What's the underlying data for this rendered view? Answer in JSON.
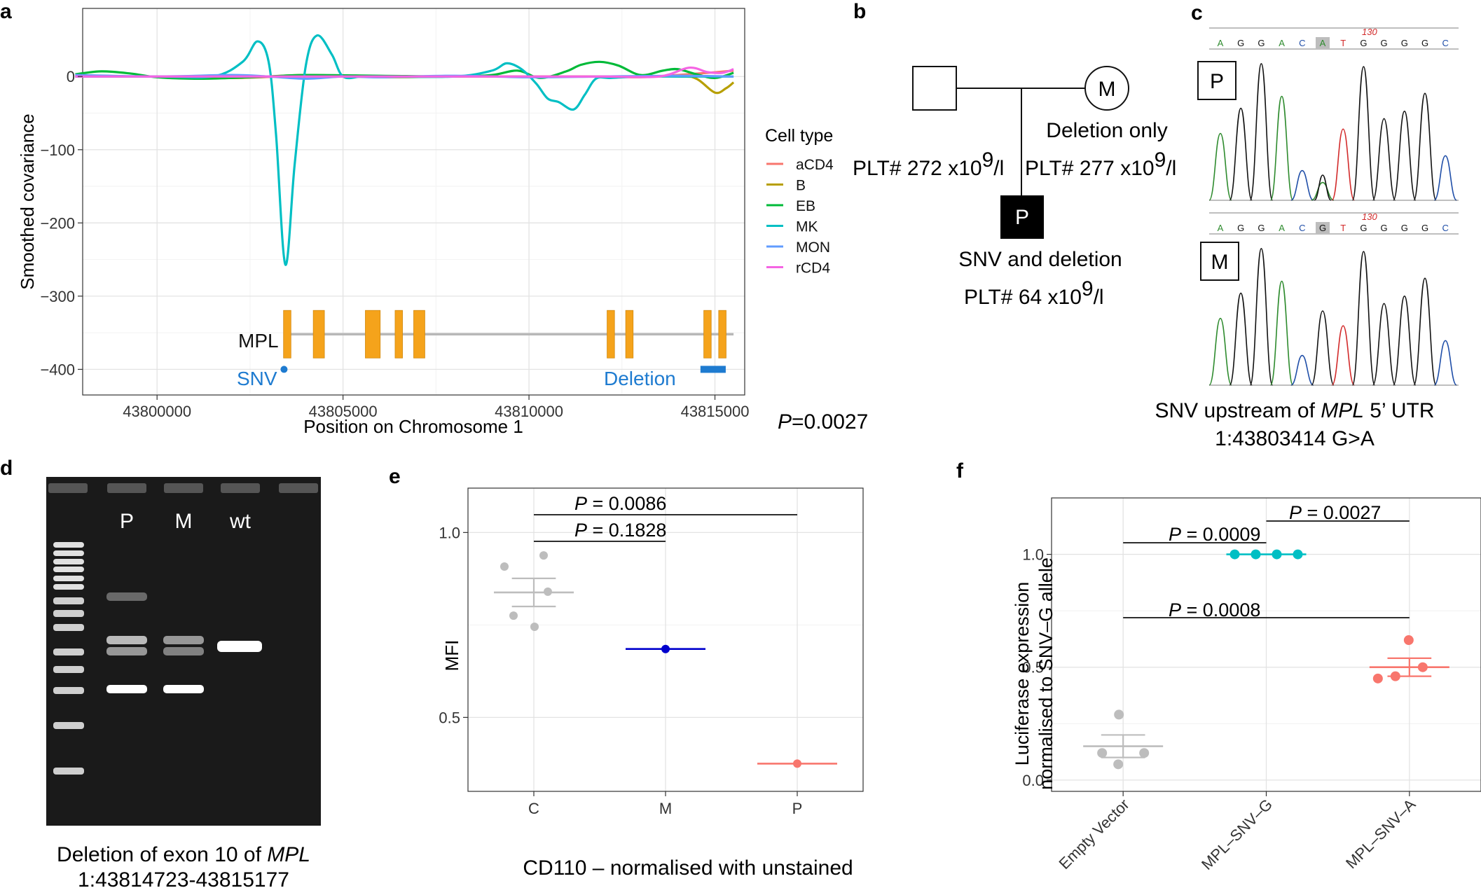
{
  "panels": {
    "a": {
      "letter": "a",
      "ylabel": "Smoothed covariance",
      "xlabel": "Position on Chromosome 1",
      "legend_title": "Cell type",
      "gene": "MPL",
      "snv_label": "SNV",
      "deletion_label": "Deletion"
    },
    "b": {
      "letter": "b",
      "mother_symbol": "M",
      "patient_symbol": "P",
      "mother_note": "Deletion only",
      "father_plt": "PLT# 272 x10",
      "father_plt_exp": "9",
      "father_plt_unit": "/l",
      "mother_plt": "PLT# 277 x10",
      "mother_plt_exp": "9",
      "mother_plt_unit": "/l",
      "patient_note": "SNV and deletion",
      "patient_plt": "PLT# 64 x10",
      "patient_plt_exp": "9",
      "patient_plt_unit": "/l",
      "orphan_p": "P",
      "orphan_value": "=0.0027"
    },
    "c": {
      "letter": "c",
      "p_bases": [
        "A",
        "G",
        "G",
        "A",
        "C",
        "A",
        "T",
        "G",
        "G",
        "G",
        "G",
        "C"
      ],
      "m_bases": [
        "A",
        "G",
        "G",
        "A",
        "C",
        "G",
        "T",
        "G",
        "G",
        "G",
        "G",
        "C"
      ],
      "position": "130",
      "p_label": "P",
      "m_label": "M",
      "caption_pre": "SNV upstream of ",
      "caption_gene": "MPL",
      "caption_post": " 5’ UTR",
      "caption_line2": "1:43803414 G>A"
    },
    "d": {
      "letter": "d",
      "lanes": [
        "P",
        "M",
        "wt"
      ],
      "caption_pre": "Deletion of exon 10 of ",
      "caption_gene": "MPL",
      "caption_line2": "1:43814723-43815177"
    },
    "e": {
      "letter": "e",
      "caption": "CD110 – normalised with unstained",
      "p1_letter": "P",
      "p1_value": " = 0.0086",
      "p2_letter": "P",
      "p2_value": " = 0.1828"
    },
    "f": {
      "letter": "f",
      "p1_letter": "P",
      "p1_value": " = 0.0009",
      "p2_letter": "P",
      "p2_value": " = 0.0027",
      "p3_letter": "P",
      "p3_value": " = 0.0008"
    }
  },
  "chart_data": [
    {
      "id": "a",
      "type": "line",
      "xlabel": "Position on Chromosome 1",
      "ylabel": "Smoothed covariance",
      "xlim": [
        43798000,
        43815800
      ],
      "ylim": [
        -435,
        93
      ],
      "xticks": [
        43800000,
        43805000,
        43810000,
        43815000
      ],
      "yticks": [
        0,
        -100,
        -200,
        -300,
        -400
      ],
      "legend_title": "Cell type",
      "series": [
        {
          "name": "aCD4",
          "color": "#F8766D",
          "x": [
            43797800,
            43800000,
            43802000,
            43804000,
            43806000,
            43808000,
            43810000,
            43812000,
            43813000,
            43814000,
            43814800,
            43815500
          ],
          "y": [
            0,
            0,
            -2,
            1,
            0,
            0,
            0,
            0,
            -1,
            2,
            5,
            8
          ]
        },
        {
          "name": "B",
          "color": "#B79F00",
          "x": [
            43797800,
            43800000,
            43802000,
            43804000,
            43806000,
            43808000,
            43810000,
            43812000,
            43814000,
            43814500,
            43815000,
            43815300,
            43815500
          ],
          "y": [
            0,
            0,
            -2,
            2,
            -1,
            0,
            0,
            0,
            0,
            -3,
            -22,
            -16,
            -8
          ]
        },
        {
          "name": "EB",
          "color": "#00BA38",
          "x": [
            43797800,
            43798500,
            43799300,
            43800000,
            43801000,
            43802000,
            43803000,
            43804000,
            43806000,
            43808000,
            43809000,
            43809700,
            43810300,
            43811000,
            43811400,
            43811900,
            43812400,
            43813000,
            43813600,
            43814000,
            43814500,
            43815000,
            43815500
          ],
          "y": [
            3,
            7,
            4,
            -1,
            -3,
            -2,
            0,
            2,
            1,
            0,
            2,
            8,
            -2,
            7,
            16,
            20,
            15,
            2,
            8,
            10,
            3,
            -2,
            5
          ]
        },
        {
          "name": "MK",
          "color": "#00BFC4",
          "x": [
            43797800,
            43800000,
            43801500,
            43802300,
            43802700,
            43803000,
            43803200,
            43803450,
            43803700,
            43804000,
            43804300,
            43804700,
            43805000,
            43805500,
            43806000,
            43808000,
            43809000,
            43809400,
            43809800,
            43810200,
            43810500,
            43810800,
            43811200,
            43811500,
            43811800,
            43812200,
            43813000,
            43814000,
            43815000,
            43815500
          ],
          "y": [
            0,
            0,
            0,
            20,
            48,
            20,
            -80,
            -257,
            -120,
            15,
            56,
            30,
            0,
            0,
            0,
            0,
            8,
            18,
            10,
            -10,
            -30,
            -35,
            -45,
            -25,
            -3,
            -2,
            0,
            0,
            0,
            0
          ]
        },
        {
          "name": "MON",
          "color": "#619CFF",
          "x": [
            43797800,
            43800000,
            43802000,
            43803000,
            43804000,
            43805000,
            43806000,
            43808000,
            43810000,
            43812000,
            43814000,
            43815500
          ],
          "y": [
            2,
            0,
            2,
            0,
            -3,
            0,
            -1,
            1,
            -1,
            0,
            1,
            0
          ]
        },
        {
          "name": "rCD4",
          "color": "#F564E3",
          "x": [
            43797800,
            43800000,
            43802000,
            43804000,
            43806000,
            43808000,
            43810000,
            43812000,
            43813500,
            43814300,
            43814800,
            43815200,
            43815500
          ],
          "y": [
            0,
            0,
            0,
            0,
            0,
            0,
            0,
            0,
            0,
            12,
            6,
            5,
            10
          ]
        }
      ],
      "gene_track": {
        "name": "MPL",
        "y": -352,
        "start": 43803400,
        "end": 43815500,
        "exons": [
          [
            43803400,
            43803600
          ],
          [
            43804200,
            43804500
          ],
          [
            43805600,
            43806000
          ],
          [
            43806400,
            43806600
          ],
          [
            43806900,
            43807200
          ],
          [
            43812100,
            43812300
          ],
          [
            43812600,
            43812800
          ],
          [
            43814700,
            43814900
          ],
          [
            43815100,
            43815300
          ]
        ]
      },
      "snv": {
        "label": "SNV",
        "x": 43803414,
        "y": -400
      },
      "deletion": {
        "label": "Deletion",
        "x_start": 43814723,
        "x_end": 43815177,
        "y": -400
      }
    },
    {
      "id": "e",
      "type": "scatter",
      "categories": [
        "C",
        "M",
        "P"
      ],
      "ylabel": "MFI",
      "ylim": [
        0.3,
        1.12
      ],
      "yticks": [
        0.5,
        1.0
      ],
      "ytick_labels": [
        "0.5",
        "1.0"
      ],
      "groups": [
        {
          "category": "C",
          "color": "#BDBDBD",
          "points": [
            0.908,
            0.938,
            0.775,
            0.84,
            0.745
          ],
          "mean": 0.838,
          "se": 0.038
        },
        {
          "category": "M",
          "color": "#0000CD",
          "points": [
            0.685
          ],
          "mean": 0.685,
          "se": 0
        },
        {
          "category": "P",
          "color": "#F8766D",
          "points": [
            0.375
          ],
          "mean": 0.375,
          "se": 0
        }
      ]
    },
    {
      "id": "f",
      "type": "scatter",
      "categories": [
        "Empty Vector",
        "MPL–SNV–G",
        "MPL–SNV–A"
      ],
      "ylabel": "Luciferase expression normalised to SNV–G allele",
      "ylabel_lines": [
        "Luciferase expression",
        "normalised to SNV–G allele"
      ],
      "ylim": [
        -0.05,
        1.25
      ],
      "yticks": [
        0.0,
        0.5,
        1.0
      ],
      "ytick_labels": [
        "0.0",
        "0.5",
        "1.0"
      ],
      "groups": [
        {
          "category": "Empty Vector",
          "color": "#BDBDBD",
          "points": [
            0.29,
            0.12,
            0.07,
            0.12
          ],
          "mean": 0.15,
          "se": 0.05
        },
        {
          "category": "MPL–SNV–G",
          "color": "#00BFC4",
          "points": [
            1.0,
            1.0,
            1.0,
            1.0
          ],
          "mean": 1.0,
          "se": 0
        },
        {
          "category": "MPL–SNV–A",
          "color": "#F8766D",
          "points": [
            0.62,
            0.5,
            0.46,
            0.45
          ],
          "mean": 0.5,
          "se": 0.04
        }
      ]
    }
  ]
}
